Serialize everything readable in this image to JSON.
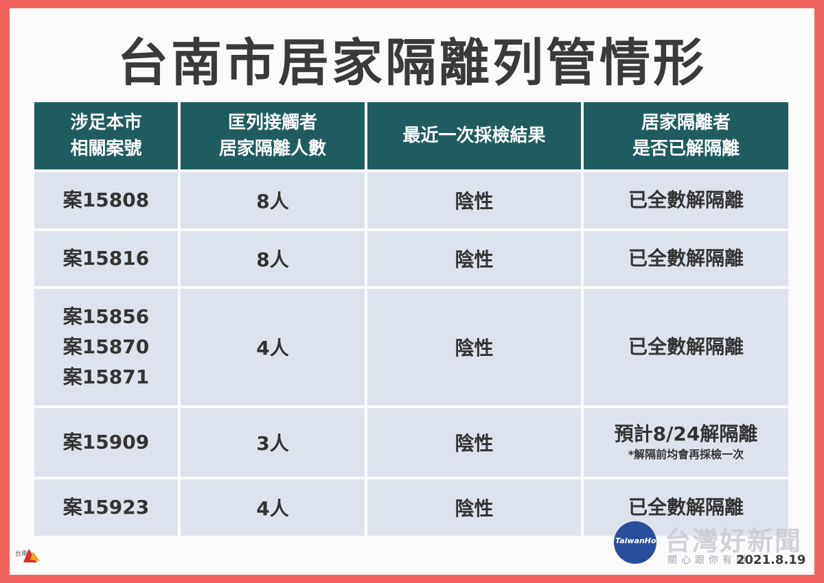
{
  "title": "台南市居家隔離列管情形",
  "headers": [
    [
      "涉足本市",
      "相關案號"
    ],
    [
      "匡列接觸者",
      "居家隔離人數"
    ],
    [
      "最近一次採檢結果"
    ],
    [
      "居家隔離者",
      "是否已解隔離"
    ]
  ],
  "rows": [
    {
      "cases": [
        "案15808"
      ],
      "count": "8人",
      "result": "陰性",
      "status": "已全數解隔離",
      "note": ""
    },
    {
      "cases": [
        "案15816"
      ],
      "count": "8人",
      "result": "陰性",
      "status": "已全數解隔離",
      "note": ""
    },
    {
      "cases": [
        "案15856",
        "案15870",
        "案15871"
      ],
      "count": "4人",
      "result": "陰性",
      "status": "已全數解隔離",
      "note": ""
    },
    {
      "cases": [
        "案15909"
      ],
      "count": "3人",
      "result": "陰性",
      "status": "預計8/24解隔離",
      "note": "*解隔前均會再採檢一次"
    },
    {
      "cases": [
        "案15923"
      ],
      "count": "4人",
      "result": "陰性",
      "status": "已全數解隔離",
      "note": ""
    }
  ],
  "logo": {
    "name": "tainan-city-logo-icon",
    "text": "台南"
  },
  "watermark": {
    "icon": "taiwanhot-circle-icon",
    "circle_text": "TaiwanHot",
    "brand": "台灣好新聞",
    "slogan": "關心跟你有關"
  },
  "date": "2021.8.19",
  "colors": {
    "frame": "#f0625b",
    "header_bg": "#1f5c5f",
    "cell_bg": "#dde3ec",
    "title_text": "#3a3a3a"
  }
}
